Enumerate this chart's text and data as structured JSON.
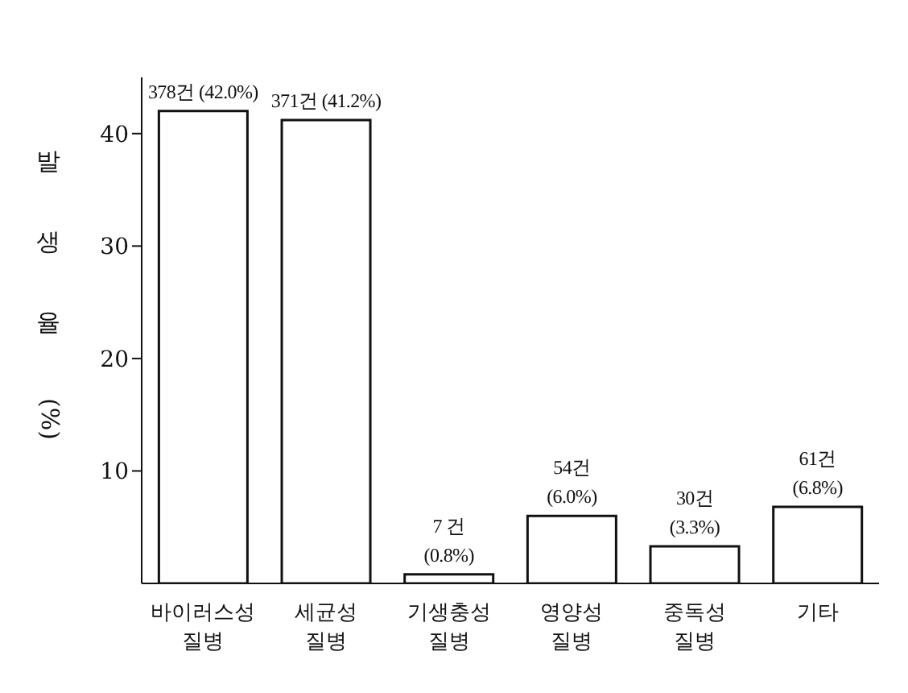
{
  "chart_data": {
    "type": "bar",
    "ylabel": "발생율(%)",
    "categories": [
      "바이러스성 질병",
      "세균성 질병",
      "기생충성 질병",
      "영양성 질병",
      "중독성 질병",
      "기타"
    ],
    "values": [
      42.0,
      41.2,
      0.8,
      6.0,
      3.3,
      6.8
    ],
    "value_labels": [
      "378건 (42.0%)",
      "371건 (41.2%)",
      "7 건 (0.8%)",
      "54건 (6.0%)",
      "30건 (3.3%)",
      "61건 (6.8%)"
    ],
    "color": "#ffffff",
    "ylim": [
      0,
      45
    ],
    "yticks": [
      10,
      20,
      30,
      40
    ],
    "grid": false,
    "legend": false
  }
}
